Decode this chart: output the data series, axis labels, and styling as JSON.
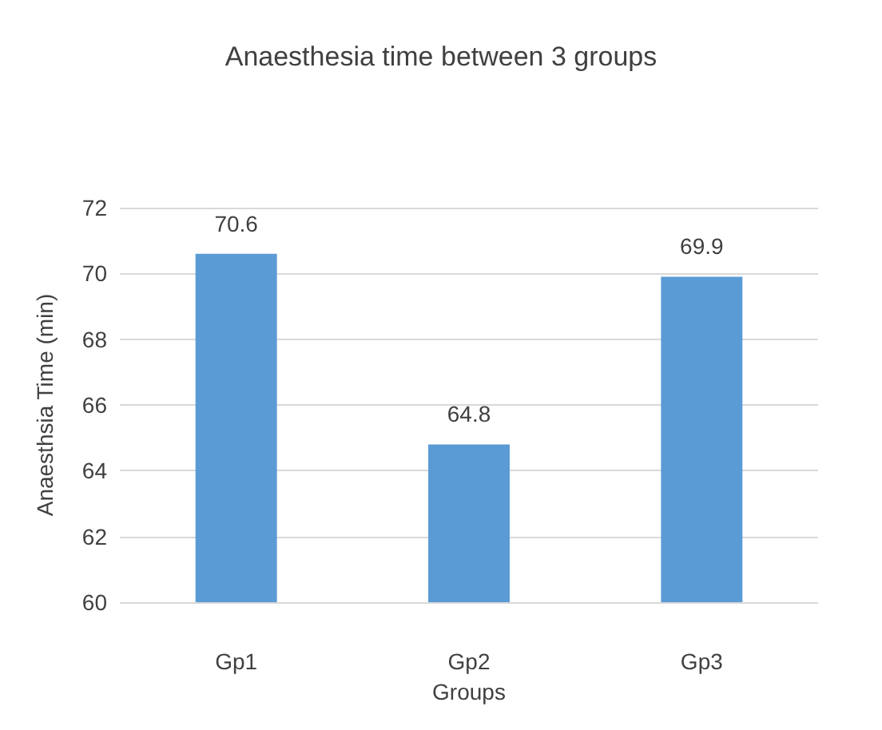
{
  "chart_data": {
    "type": "bar",
    "title": "Anaesthesia time between 3 groups",
    "xlabel": "Groups",
    "ylabel": "Anaesthsia Time (min)",
    "categories": [
      "Gp1",
      "Gp2",
      "Gp3"
    ],
    "values": [
      70.6,
      64.8,
      69.9
    ],
    "color": "#5b9bd5",
    "ylim": [
      60,
      72
    ],
    "yticks": [
      60,
      62,
      64,
      66,
      68,
      70,
      72
    ],
    "grid": "y",
    "data_labels": true
  }
}
